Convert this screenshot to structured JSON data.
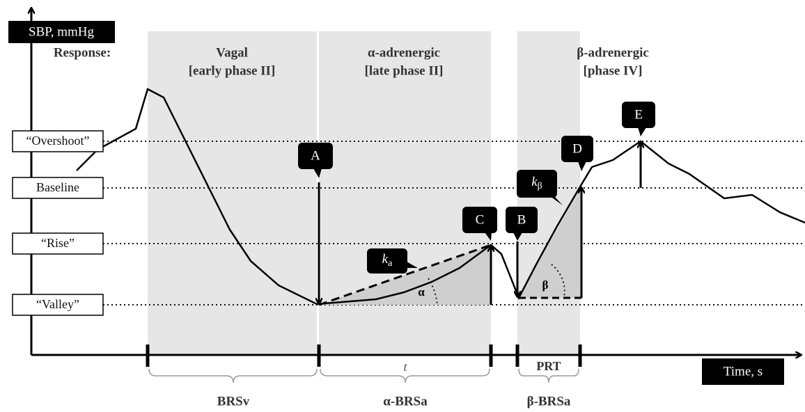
{
  "axis": {
    "y_label": "SBP, mmHg",
    "x_label": "Time, s"
  },
  "response_label": "Response:",
  "phases": [
    {
      "name": "Vagal",
      "detail": "[early phase II]"
    },
    {
      "name": "α-adrenergic",
      "detail": "[late phase II]"
    },
    {
      "name": "β-adrenergic",
      "detail": "[phase IV]"
    }
  ],
  "levels": [
    "“Overshoot”",
    "Baseline",
    "“Rise”",
    "“Valley”"
  ],
  "markers": [
    "A",
    "B",
    "C",
    "D",
    "E"
  ],
  "slopes": [
    {
      "symbol": "k",
      "subscript": "a",
      "angle": "α"
    },
    {
      "symbol": "k",
      "subscript": "β",
      "angle": "β"
    }
  ],
  "intervals": [
    "t",
    "PRT"
  ],
  "indices": [
    "BRSv",
    "α-BRSa",
    "β-BRSa"
  ]
}
